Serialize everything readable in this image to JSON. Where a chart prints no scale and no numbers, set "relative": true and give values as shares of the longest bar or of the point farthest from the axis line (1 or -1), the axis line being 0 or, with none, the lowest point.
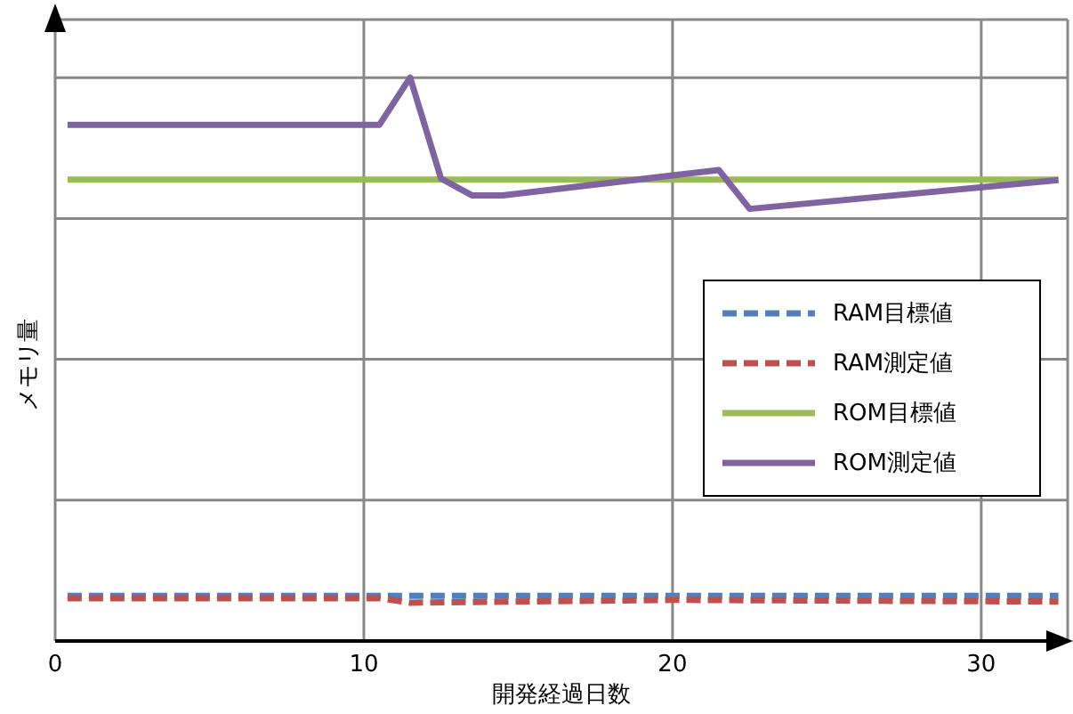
{
  "chart_data": {
    "type": "line",
    "relative": true,
    "xlabel": "開発経過日数",
    "ylabel": "メモリ量",
    "xlim": [
      0,
      32.8
    ],
    "xticks": [
      0,
      10,
      20,
      30
    ],
    "grid": true,
    "legend": "right",
    "marker": "none",
    "series": [
      {
        "name": "RAM目標値",
        "color": "#4f81bd",
        "line_style": "dashed",
        "x": [
          0.4,
          32.5
        ],
        "values": [
          0.08,
          0.08
        ]
      },
      {
        "name": "RAM測定値",
        "color": "#c0504d",
        "line_style": "dashed",
        "x": [
          0.4,
          10.5,
          11.5,
          20,
          32.5
        ],
        "values": [
          0.076,
          0.076,
          0.068,
          0.073,
          0.07
        ]
      },
      {
        "name": "ROM目標値",
        "color": "#9bbb59",
        "line_style": "solid",
        "x": [
          0.4,
          32.5
        ],
        "values": [
          0.819,
          0.819
        ]
      },
      {
        "name": "ROM測定値",
        "color": "#8064a2",
        "line_style": "solid",
        "x": [
          0.4,
          10.5,
          11.5,
          12.5,
          13.5,
          14.5,
          21.5,
          22.5,
          32.5
        ],
        "values": [
          0.916,
          0.916,
          1,
          0.821,
          0.791,
          0.791,
          0.836,
          0.767,
          0.818
        ]
      }
    ]
  }
}
